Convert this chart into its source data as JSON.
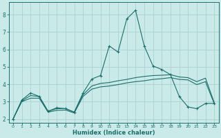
{
  "xlabel": "Humidex (Indice chaleur)",
  "bg_color": "#caeaea",
  "grid_color": "#afd4d4",
  "line_color": "#1a6e6a",
  "xlim": [
    -0.5,
    23.5
  ],
  "ylim": [
    1.8,
    8.7
  ],
  "xticks": [
    0,
    1,
    2,
    3,
    4,
    5,
    6,
    7,
    8,
    9,
    10,
    11,
    12,
    13,
    14,
    15,
    16,
    17,
    18,
    19,
    20,
    21,
    22,
    23
  ],
  "yticks": [
    2,
    3,
    4,
    5,
    6,
    7,
    8
  ],
  "line1_x": [
    0,
    1,
    2,
    3,
    4,
    5,
    6,
    7,
    8,
    9,
    10,
    11,
    12,
    13,
    14,
    15,
    16,
    17,
    18,
    19,
    20,
    21,
    22,
    23
  ],
  "line1_y": [
    2.0,
    3.1,
    3.5,
    3.3,
    2.45,
    2.65,
    2.6,
    2.4,
    3.5,
    4.3,
    4.5,
    6.2,
    5.85,
    7.75,
    8.25,
    6.2,
    5.05,
    4.85,
    4.55,
    3.3,
    2.7,
    2.6,
    2.9,
    2.9
  ],
  "line2_x": [
    0,
    1,
    2,
    3,
    4,
    5,
    6,
    7,
    8,
    9,
    10,
    11,
    12,
    13,
    14,
    15,
    16,
    17,
    18,
    19,
    20,
    21,
    22,
    23
  ],
  "line2_y": [
    2.0,
    3.05,
    3.35,
    3.3,
    2.45,
    2.6,
    2.6,
    2.4,
    3.4,
    3.9,
    4.05,
    4.1,
    4.2,
    4.28,
    4.38,
    4.45,
    4.5,
    4.52,
    4.55,
    4.42,
    4.38,
    4.15,
    4.35,
    2.95
  ],
  "line3_x": [
    0,
    1,
    2,
    3,
    4,
    5,
    6,
    7,
    8,
    9,
    10,
    11,
    12,
    13,
    14,
    15,
    16,
    17,
    18,
    19,
    20,
    21,
    22,
    23
  ],
  "line3_y": [
    2.0,
    3.0,
    3.2,
    3.2,
    2.4,
    2.5,
    2.52,
    2.35,
    3.3,
    3.72,
    3.85,
    3.9,
    3.98,
    4.08,
    4.15,
    4.2,
    4.28,
    4.32,
    4.38,
    4.28,
    4.25,
    3.98,
    4.15,
    2.88
  ]
}
